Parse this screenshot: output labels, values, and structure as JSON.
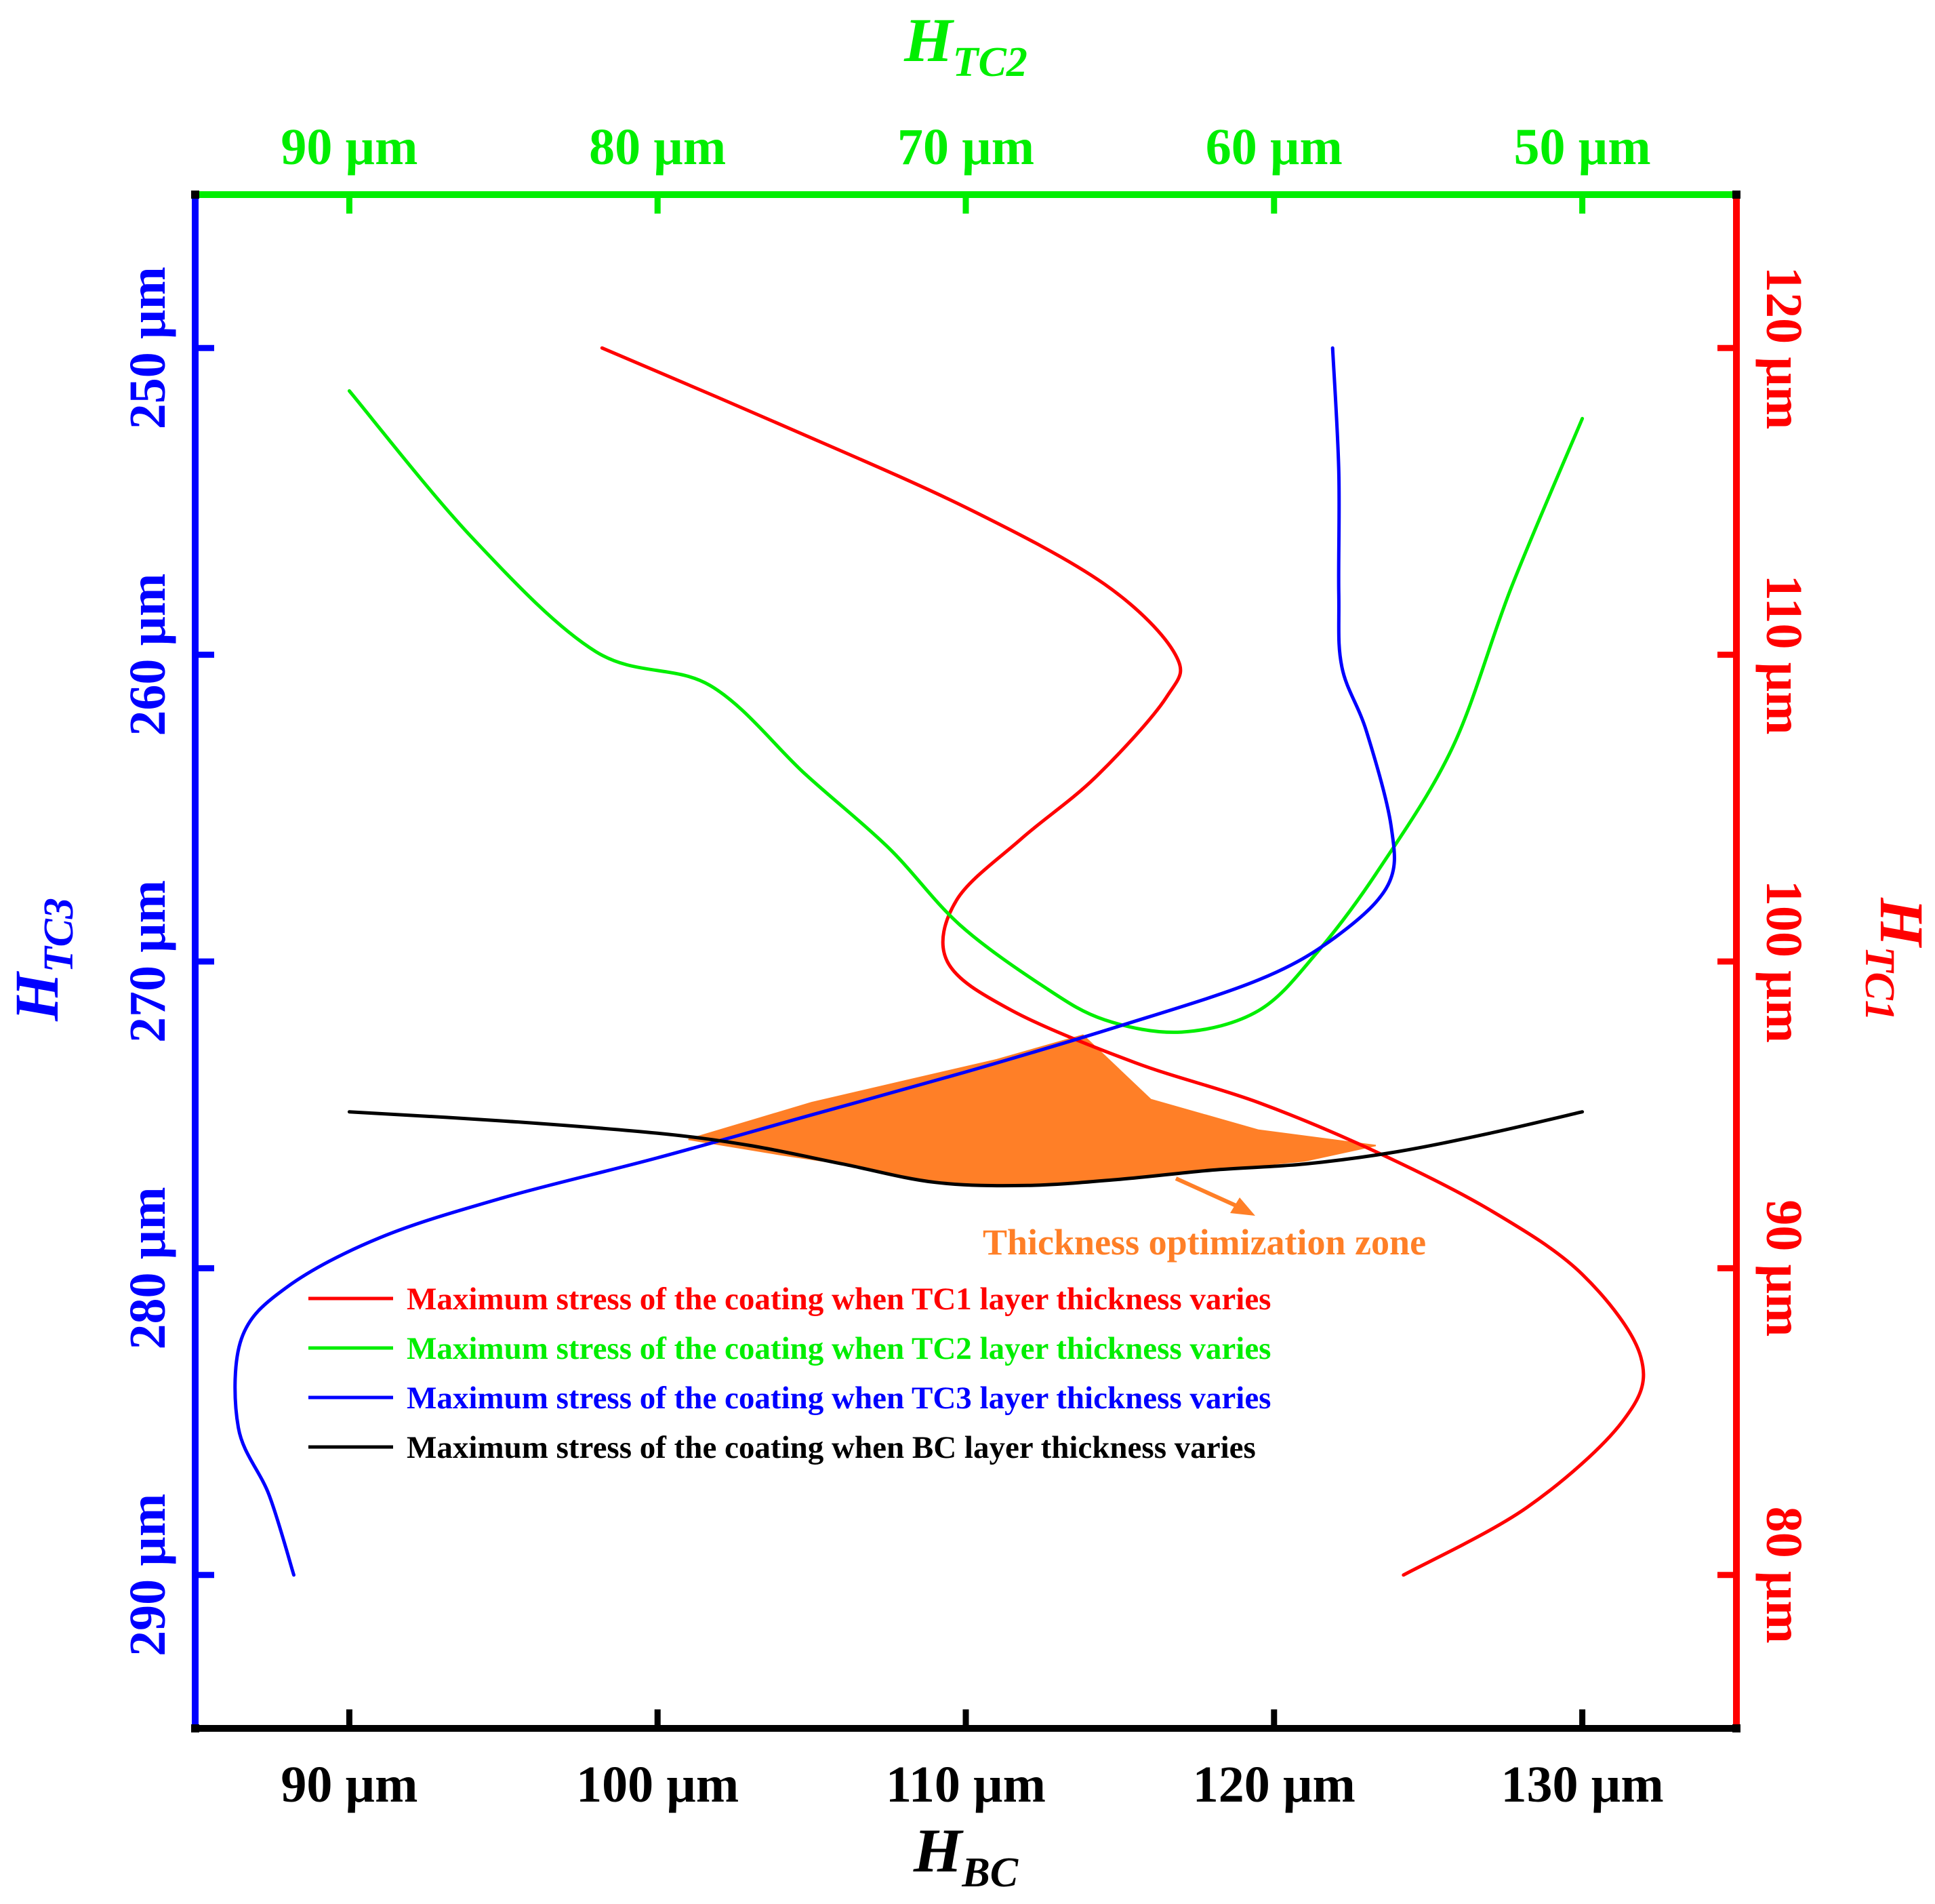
{
  "chart_data": {
    "type": "line",
    "title": "",
    "axes": {
      "bottom": {
        "label_main": "H",
        "label_sub": "BC",
        "color": "#000000",
        "range": [
          85,
          135
        ],
        "ticks": [
          90,
          100,
          110,
          120,
          130
        ],
        "tick_labels": [
          "90 µm",
          "100 µm",
          "110 µm",
          "120 µm",
          "130 µm"
        ]
      },
      "top": {
        "label_main": "H",
        "label_sub": "TC2",
        "color": "#00ee00",
        "range": [
          95,
          45
        ],
        "ticks": [
          90,
          80,
          70,
          60,
          50
        ],
        "tick_labels": [
          "90 µm",
          "80 µm",
          "70 µm",
          "60 µm",
          "50 µm"
        ]
      },
      "left": {
        "label_main": "H",
        "label_sub": "TC3",
        "color": "#0000ff",
        "range": [
          295,
          245
        ],
        "ticks": [
          250,
          260,
          270,
          280,
          290
        ],
        "tick_labels": [
          "250 µm",
          "260 µm",
          "270 µm",
          "280 µm",
          "290 µm"
        ]
      },
      "right": {
        "label_main": "H",
        "label_sub": "TC1",
        "color": "#ff0000",
        "range": [
          75,
          125
        ],
        "ticks": [
          80,
          90,
          100,
          110,
          120
        ],
        "tick_labels": [
          "80 µm",
          "90 µm",
          "100 µm",
          "110 µm",
          "120 µm"
        ]
      }
    },
    "series": [
      {
        "name": "Maximum stress of the coating when TC1 layer thickness varies",
        "color": "#ff0000",
        "points": [
          [
            98.2,
            120.0
          ],
          [
            104,
            117.5
          ],
          [
            110,
            114.8
          ],
          [
            114.5,
            112.3
          ],
          [
            116.8,
            110.0
          ],
          [
            116.5,
            108.6
          ],
          [
            114.2,
            106.0
          ],
          [
            111.8,
            104.0
          ],
          [
            109.7,
            102.0
          ],
          [
            109.4,
            100.0
          ],
          [
            111.5,
            98.4
          ],
          [
            115.5,
            96.7
          ],
          [
            119.5,
            95.4
          ],
          [
            123.3,
            93.8
          ],
          [
            127,
            91.9
          ],
          [
            130,
            89.8
          ],
          [
            131.9,
            87.1
          ],
          [
            131.3,
            85.0
          ],
          [
            128.2,
            82.2
          ],
          [
            124.2,
            80.0
          ]
        ]
      },
      {
        "name": "Maximum stress of the coating when TC2 layer thickness varies",
        "color": "#00ee00",
        "points": [
          [
            90.0,
            251.4
          ],
          [
            94,
            256.2
          ],
          [
            98,
            259.9
          ],
          [
            101.7,
            261.0
          ],
          [
            104.8,
            263.9
          ],
          [
            107.5,
            266.3
          ],
          [
            109.8,
            268.8
          ],
          [
            112.5,
            270.8
          ],
          [
            114.5,
            271.9
          ],
          [
            117.0,
            272.3
          ],
          [
            119.5,
            271.6
          ],
          [
            121.4,
            269.7
          ],
          [
            123.4,
            267.0
          ],
          [
            125.8,
            263.0
          ],
          [
            127.7,
            257.8
          ],
          [
            130.0,
            252.3
          ]
        ]
      },
      {
        "name": "Maximum stress of the coating when TC3 layer thickness varies",
        "color": "#0000ff",
        "points": [
          [
            88.2,
            290.0
          ],
          [
            87.4,
            287.4
          ],
          [
            86.4,
            285.2
          ],
          [
            86.5,
            282.3
          ],
          [
            88,
            280.6
          ],
          [
            91,
            279.0
          ],
          [
            95,
            277.7
          ],
          [
            100,
            276.4
          ],
          [
            105,
            275.0
          ],
          [
            110,
            273.6
          ],
          [
            115,
            272.1
          ],
          [
            119.5,
            270.6
          ],
          [
            122,
            269.2
          ],
          [
            123.7,
            267.5
          ],
          [
            123.8,
            265.6
          ],
          [
            123.0,
            262.5
          ],
          [
            122.2,
            260.4
          ],
          [
            122.1,
            258.0
          ],
          [
            122.1,
            254.0
          ],
          [
            121.9,
            250.0
          ]
        ]
      },
      {
        "name": "Maximum stress of the coating when BC layer thickness varies",
        "color": "#000000",
        "points": [
          [
            90,
            274.9
          ],
          [
            95,
            275.2
          ],
          [
            100,
            275.6
          ],
          [
            103,
            276.0
          ],
          [
            106,
            276.6
          ],
          [
            109,
            277.2
          ],
          [
            112,
            277.3
          ],
          [
            115,
            277.1
          ],
          [
            118,
            276.8
          ],
          [
            121,
            276.6
          ],
          [
            124,
            276.2
          ],
          [
            127,
            275.6
          ],
          [
            130,
            274.9
          ]
        ]
      }
    ],
    "optimization_zone": {
      "label": "Thickness optimization zone",
      "color": "#ff7f27",
      "boundary": [
        [
          101.0,
          275.8
        ],
        [
          104,
          276.3
        ],
        [
          106,
          276.6
        ],
        [
          109,
          277.2
        ],
        [
          112,
          277.3
        ],
        [
          115,
          277.1
        ],
        [
          118,
          276.8
        ],
        [
          121,
          276.5
        ],
        [
          123.3,
          276.0
        ],
        [
          119.5,
          275.5
        ],
        [
          116,
          274.5
        ],
        [
          113.8,
          272.4
        ],
        [
          111,
          273.2
        ],
        [
          108,
          273.9
        ],
        [
          105,
          274.6
        ]
      ]
    },
    "legend_placement": "lower-center"
  }
}
